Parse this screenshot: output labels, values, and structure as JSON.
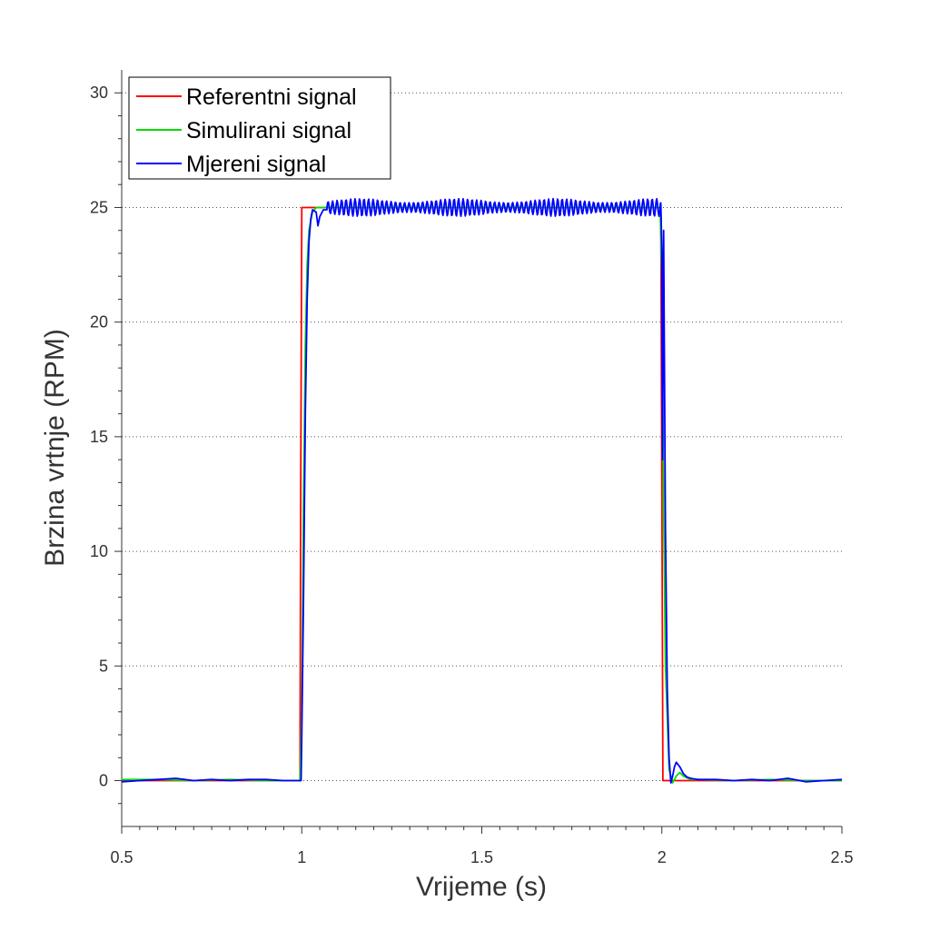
{
  "chart_data": {
    "type": "line",
    "title": "",
    "xlabel": "Vrijeme (s)",
    "ylabel": "Brzina vrtnje (RPM)",
    "xlim": [
      0.5,
      2.5
    ],
    "ylim": [
      -2,
      31
    ],
    "x_ticks": [
      0.5,
      1,
      1.5,
      2,
      2.5
    ],
    "x_tick_labels": [
      "0.5",
      "1",
      "1.5",
      "2",
      "2.5"
    ],
    "y_ticks": [
      0,
      5,
      10,
      15,
      20,
      25,
      30
    ],
    "y_tick_labels": [
      "0",
      "5",
      "10",
      "15",
      "20",
      "25",
      "30"
    ],
    "grid": "horizontal-dotted",
    "legend_position": "top-left",
    "series": [
      {
        "name": "Referentni signal",
        "color": "#ff0000",
        "x": [
          0.5,
          0.995,
          0.997,
          1.0,
          1.003,
          1.997,
          2.0,
          2.003,
          2.5
        ],
        "y": [
          0,
          0,
          12.5,
          25,
          25,
          25,
          12.5,
          0,
          0
        ]
      },
      {
        "name": "Simulirani signal",
        "color": "#00dd00",
        "x": [
          0.5,
          0.6,
          0.7,
          0.8,
          0.9,
          0.995,
          1.0,
          1.005,
          1.01,
          1.015,
          1.02,
          1.03,
          1.04,
          1.05,
          1.1,
          1.5,
          1.995,
          2.0,
          2.005,
          2.01,
          2.02,
          2.03,
          2.04,
          2.05,
          2.06,
          2.08,
          2.1,
          2.2,
          2.3,
          2.4,
          2.5
        ],
        "y": [
          0.05,
          0.05,
          0.0,
          0.05,
          0.0,
          0.0,
          3,
          12,
          19,
          22.5,
          24,
          24.8,
          25,
          25,
          25,
          25,
          25,
          22,
          12,
          5,
          0.5,
          -0.1,
          0.2,
          0.35,
          0.2,
          0.05,
          0.05,
          0.0,
          0.05,
          0.0,
          0.0
        ]
      },
      {
        "name": "Mjereni signal",
        "color": "#0000ff",
        "x": [
          0.5,
          0.55,
          0.6,
          0.65,
          0.7,
          0.75,
          0.8,
          0.85,
          0.9,
          0.95,
          0.998,
          1.0,
          1.005,
          1.01,
          1.015,
          1.02,
          1.025,
          1.03,
          1.04,
          1.045,
          1.05,
          1.06,
          1.07
        ],
        "y": [
          -0.05,
          0.0,
          0.05,
          0.1,
          0.0,
          0.05,
          0.0,
          0.05,
          0.05,
          0.0,
          0.0,
          2,
          8,
          16,
          21,
          23.5,
          24.5,
          24.9,
          24.8,
          24.2,
          24.6,
          24.9,
          24.9
        ],
        "oscillation": {
          "x_start": 1.07,
          "x_end": 1.995,
          "mean": 25.0,
          "amplitude": 0.35,
          "period": 0.0125
        },
        "tail_x": [
          1.997,
          2.0,
          2.002,
          2.005,
          2.01,
          2.015,
          2.02,
          2.025,
          2.03,
          2.035,
          2.04,
          2.05,
          2.06,
          2.07,
          2.08,
          2.1,
          2.15,
          2.2,
          2.25,
          2.3,
          2.35,
          2.4,
          2.45,
          2.5
        ],
        "tail_y": [
          25.2,
          23,
          14,
          24,
          11,
          4,
          1,
          -0.1,
          0.2,
          0.6,
          0.8,
          0.6,
          0.3,
          0.15,
          0.1,
          0.05,
          0.05,
          0.0,
          0.05,
          0.0,
          0.1,
          -0.05,
          0.0,
          0.05
        ]
      }
    ]
  }
}
